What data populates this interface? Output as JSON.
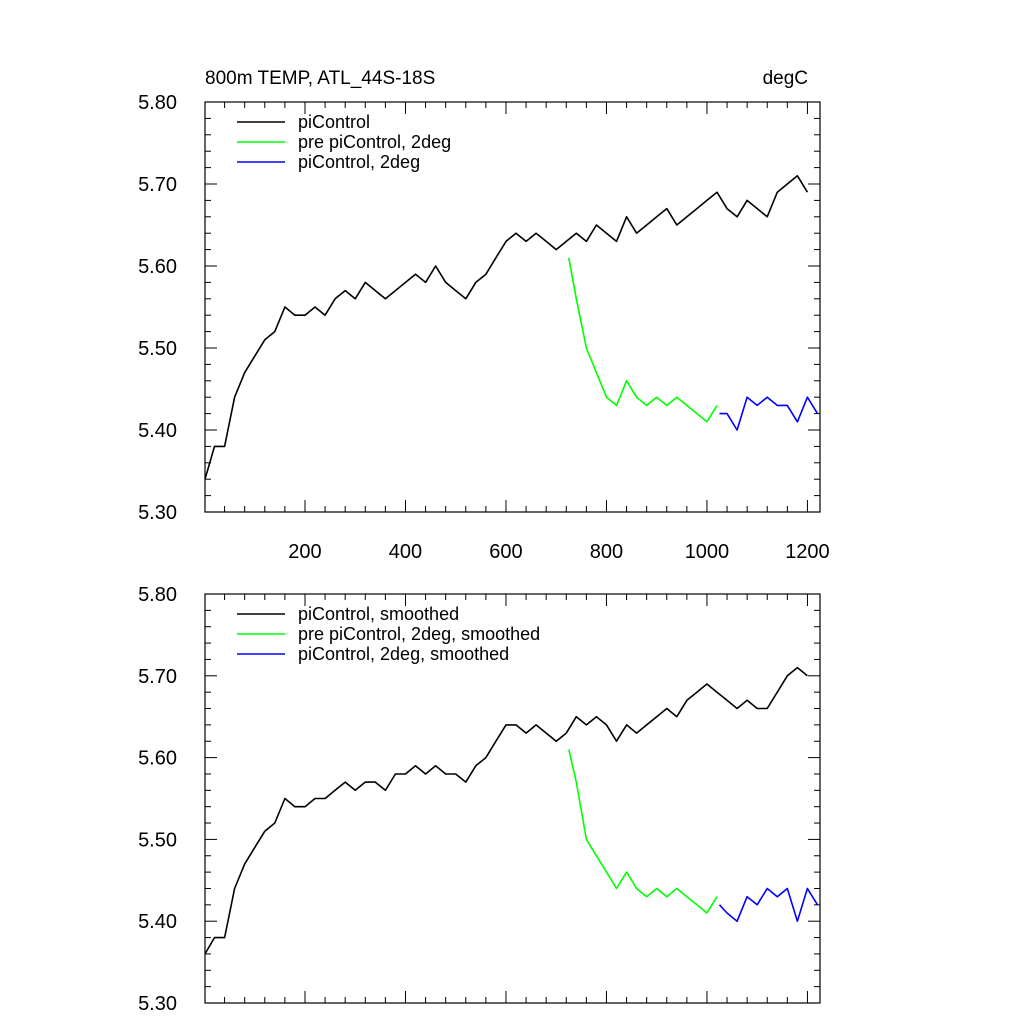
{
  "chart_data": [
    {
      "type": "line",
      "title": "800m TEMP, ATL_44S-18S",
      "units": "degC",
      "xlabel": "",
      "ylabel": "",
      "xlim": [
        1,
        1225
      ],
      "ylim": [
        5.3,
        5.8
      ],
      "xticks": [
        200,
        400,
        600,
        800,
        1000,
        1200
      ],
      "xtick_labels": [
        "200",
        "400",
        "600",
        "800",
        "1000",
        "1200"
      ],
      "yticks": [
        5.3,
        5.4,
        5.5,
        5.6,
        5.7,
        5.8
      ],
      "ytick_labels": [
        "5.30",
        "5.40",
        "5.50",
        "5.60",
        "5.70",
        "5.80"
      ],
      "grid": false,
      "legend_position": "top-left",
      "series": [
        {
          "name": "piControl",
          "color": "#000000",
          "x": [
            1,
            20,
            40,
            60,
            80,
            100,
            120,
            140,
            160,
            180,
            200,
            220,
            240,
            260,
            280,
            300,
            320,
            340,
            360,
            380,
            400,
            420,
            440,
            460,
            480,
            500,
            520,
            540,
            560,
            580,
            600,
            620,
            640,
            660,
            680,
            700,
            720,
            740,
            760,
            780,
            800,
            820,
            840,
            860,
            880,
            900,
            920,
            940,
            960,
            980,
            1000,
            1020,
            1040,
            1060,
            1080,
            1100,
            1120,
            1140,
            1160,
            1180,
            1200
          ],
          "values": [
            5.34,
            5.38,
            5.38,
            5.44,
            5.47,
            5.49,
            5.51,
            5.52,
            5.55,
            5.54,
            5.54,
            5.55,
            5.54,
            5.56,
            5.57,
            5.56,
            5.58,
            5.57,
            5.56,
            5.57,
            5.58,
            5.59,
            5.58,
            5.6,
            5.58,
            5.57,
            5.56,
            5.58,
            5.59,
            5.61,
            5.63,
            5.64,
            5.63,
            5.64,
            5.63,
            5.62,
            5.63,
            5.64,
            5.63,
            5.65,
            5.64,
            5.63,
            5.66,
            5.64,
            5.65,
            5.66,
            5.67,
            5.65,
            5.66,
            5.67,
            5.68,
            5.69,
            5.67,
            5.66,
            5.68,
            5.67,
            5.66,
            5.69,
            5.7,
            5.71,
            5.69
          ]
        },
        {
          "name": "pre piControl, 2deg",
          "color": "#00ff00",
          "x": [
            725,
            740,
            760,
            780,
            800,
            820,
            840,
            860,
            880,
            900,
            920,
            940,
            960,
            980,
            1000,
            1020
          ],
          "values": [
            5.61,
            5.56,
            5.5,
            5.47,
            5.44,
            5.43,
            5.46,
            5.44,
            5.43,
            5.44,
            5.43,
            5.44,
            5.43,
            5.42,
            5.41,
            5.43
          ]
        },
        {
          "name": "piControl, 2deg",
          "color": "#0000ff",
          "x": [
            1025,
            1040,
            1060,
            1080,
            1100,
            1120,
            1140,
            1160,
            1180,
            1200,
            1220
          ],
          "values": [
            5.42,
            5.42,
            5.4,
            5.44,
            5.43,
            5.44,
            5.43,
            5.43,
            5.41,
            5.44,
            5.42
          ]
        }
      ]
    },
    {
      "type": "line",
      "title": "",
      "xlabel": "",
      "ylabel": "",
      "xlim": [
        1,
        1225
      ],
      "ylim": [
        5.3,
        5.8
      ],
      "yticks": [
        5.3,
        5.4,
        5.5,
        5.6,
        5.7,
        5.8
      ],
      "ytick_labels": [
        "5.30",
        "5.40",
        "5.50",
        "5.60",
        "5.70",
        "5.80"
      ],
      "grid": false,
      "legend_position": "top-left",
      "series": [
        {
          "name": "piControl, smoothed",
          "color": "#000000",
          "x": [
            1,
            20,
            40,
            60,
            80,
            100,
            120,
            140,
            160,
            180,
            200,
            220,
            240,
            260,
            280,
            300,
            320,
            340,
            360,
            380,
            400,
            420,
            440,
            460,
            480,
            500,
            520,
            540,
            560,
            580,
            600,
            620,
            640,
            660,
            680,
            700,
            720,
            740,
            760,
            780,
            800,
            820,
            840,
            860,
            880,
            900,
            920,
            940,
            960,
            980,
            1000,
            1020,
            1040,
            1060,
            1080,
            1100,
            1120,
            1140,
            1160,
            1180,
            1200
          ],
          "values": [
            5.36,
            5.38,
            5.38,
            5.44,
            5.47,
            5.49,
            5.51,
            5.52,
            5.55,
            5.54,
            5.54,
            5.55,
            5.55,
            5.56,
            5.57,
            5.56,
            5.57,
            5.57,
            5.56,
            5.58,
            5.58,
            5.59,
            5.58,
            5.59,
            5.58,
            5.58,
            5.57,
            5.59,
            5.6,
            5.62,
            5.64,
            5.64,
            5.63,
            5.64,
            5.63,
            5.62,
            5.63,
            5.65,
            5.64,
            5.65,
            5.64,
            5.62,
            5.64,
            5.63,
            5.64,
            5.65,
            5.66,
            5.65,
            5.67,
            5.68,
            5.69,
            5.68,
            5.67,
            5.66,
            5.67,
            5.66,
            5.66,
            5.68,
            5.7,
            5.71,
            5.7
          ]
        },
        {
          "name": "pre piControl, 2deg, smoothed",
          "color": "#00ff00",
          "x": [
            725,
            740,
            760,
            780,
            800,
            820,
            840,
            860,
            880,
            900,
            920,
            940,
            960,
            980,
            1000,
            1020
          ],
          "values": [
            5.61,
            5.57,
            5.5,
            5.48,
            5.46,
            5.44,
            5.46,
            5.44,
            5.43,
            5.44,
            5.43,
            5.44,
            5.43,
            5.42,
            5.41,
            5.43
          ]
        },
        {
          "name": "piControl, 2deg, smoothed",
          "color": "#0000ff",
          "x": [
            1025,
            1040,
            1060,
            1080,
            1100,
            1120,
            1140,
            1160,
            1180,
            1200,
            1220
          ],
          "values": [
            5.42,
            5.41,
            5.4,
            5.43,
            5.42,
            5.44,
            5.43,
            5.44,
            5.4,
            5.44,
            5.42
          ]
        }
      ]
    }
  ]
}
